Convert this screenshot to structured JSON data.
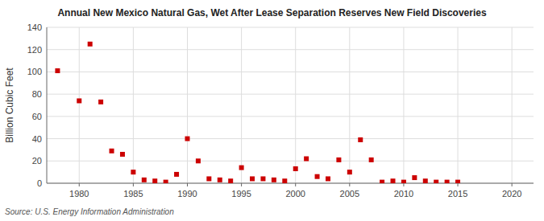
{
  "chart_data": {
    "type": "scatter",
    "title": "Annual New Mexico Natural Gas, Wet After Lease Separation Reserves New Field Discoveries",
    "ylabel": "Billion Cubic Feet",
    "source": "Source: U.S. Energy Information Administration",
    "color": "#cc0000",
    "marker": "square",
    "grid": true,
    "xlim": [
      1977,
      2022
    ],
    "ylim": [
      0,
      140
    ],
    "xticks": [
      1980,
      1985,
      1990,
      1995,
      2000,
      2005,
      2010,
      2015,
      2020
    ],
    "yticks": [
      0,
      20,
      40,
      60,
      80,
      100,
      120,
      140
    ],
    "x": [
      1978,
      1980,
      1981,
      1982,
      1983,
      1984,
      1985,
      1986,
      1987,
      1988,
      1989,
      1990,
      1991,
      1992,
      1993,
      1994,
      1995,
      1996,
      1997,
      1998,
      1999,
      2000,
      2001,
      2002,
      2003,
      2004,
      2005,
      2006,
      2007,
      2008,
      2009,
      2010,
      2011,
      2012,
      2013,
      2014,
      2015
    ],
    "values": [
      101,
      74,
      125,
      73,
      29,
      26,
      10,
      3,
      2,
      1,
      8,
      40,
      20,
      4,
      3,
      2,
      14,
      4,
      4,
      3,
      2,
      13,
      22,
      6,
      4,
      21,
      10,
      39,
      21,
      1,
      2,
      1,
      5,
      2,
      1,
      1,
      1
    ]
  }
}
